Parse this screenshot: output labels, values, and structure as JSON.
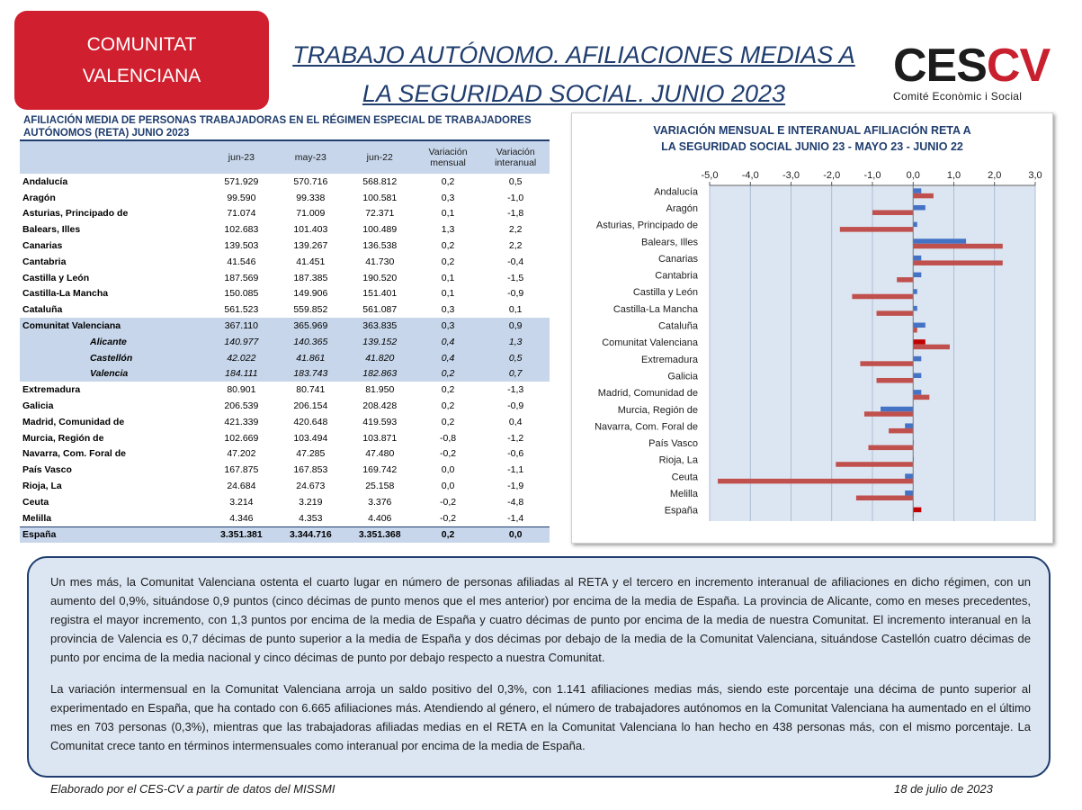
{
  "header": {
    "region_line1": "COMUNITAT",
    "region_line2": "VALENCIANA",
    "title_line1": "TRABAJO AUTÓNOMO. AFILIACIONES MEDIAS A",
    "title_line2": "LA SEGURIDAD SOCIAL. JUNIO 2023",
    "logo_main_1": "CES",
    "logo_main_2": "CV",
    "logo_sub": "Comité Econòmic i Social"
  },
  "table": {
    "title": "AFILIACIÓN MEDIA DE PERSONAS TRABAJADORAS EN EL RÉGIMEN ESPECIAL DE TRABAJADORES AUTÓNOMOS (RETA) JUNIO 2023",
    "headers": [
      "jun-23",
      "may-23",
      "jun-22",
      "Variación mensual",
      "Variación interanual"
    ],
    "rows": [
      {
        "name": "Andalucía",
        "jun23": "571.929",
        "may23": "570.716",
        "jun22": "568.812",
        "vm": "0,2",
        "vi": "0,5",
        "style": ""
      },
      {
        "name": "Aragón",
        "jun23": "99.590",
        "may23": "99.338",
        "jun22": "100.581",
        "vm": "0,3",
        "vi": "-1,0",
        "style": ""
      },
      {
        "name": "Asturias, Principado de",
        "jun23": "71.074",
        "may23": "71.009",
        "jun22": "72.371",
        "vm": "0,1",
        "vi": "-1,8",
        "style": ""
      },
      {
        "name": "Balears, Illes",
        "jun23": "102.683",
        "may23": "101.403",
        "jun22": "100.489",
        "vm": "1,3",
        "vi": "2,2",
        "style": ""
      },
      {
        "name": "Canarias",
        "jun23": "139.503",
        "may23": "139.267",
        "jun22": "136.538",
        "vm": "0,2",
        "vi": "2,2",
        "style": ""
      },
      {
        "name": "Cantabria",
        "jun23": "41.546",
        "may23": "41.451",
        "jun22": "41.730",
        "vm": "0,2",
        "vi": "-0,4",
        "style": ""
      },
      {
        "name": "Castilla y León",
        "jun23": "187.569",
        "may23": "187.385",
        "jun22": "190.520",
        "vm": "0,1",
        "vi": "-1,5",
        "style": ""
      },
      {
        "name": "Castilla-La Mancha",
        "jun23": "150.085",
        "may23": "149.906",
        "jun22": "151.401",
        "vm": "0,1",
        "vi": "-0,9",
        "style": ""
      },
      {
        "name": "Cataluña",
        "jun23": "561.523",
        "may23": "559.852",
        "jun22": "561.087",
        "vm": "0,3",
        "vi": "0,1",
        "style": ""
      },
      {
        "name": "Comunitat Valenciana",
        "jun23": "367.110",
        "may23": "365.969",
        "jun22": "363.835",
        "vm": "0,3",
        "vi": "0,9",
        "style": "hl"
      },
      {
        "name": "Alicante",
        "jun23": "140.977",
        "may23": "140.365",
        "jun22": "139.152",
        "vm": "0,4",
        "vi": "1,3",
        "style": "hl prov"
      },
      {
        "name": "Castellón",
        "jun23": "42.022",
        "may23": "41.861",
        "jun22": "41.820",
        "vm": "0,4",
        "vi": "0,5",
        "style": "hl prov"
      },
      {
        "name": "Valencia",
        "jun23": "184.111",
        "may23": "183.743",
        "jun22": "182.863",
        "vm": "0,2",
        "vi": "0,7",
        "style": "hl prov"
      },
      {
        "name": "Extremadura",
        "jun23": "80.901",
        "may23": "80.741",
        "jun22": "81.950",
        "vm": "0,2",
        "vi": "-1,3",
        "style": ""
      },
      {
        "name": "Galicia",
        "jun23": "206.539",
        "may23": "206.154",
        "jun22": "208.428",
        "vm": "0,2",
        "vi": "-0,9",
        "style": ""
      },
      {
        "name": "Madrid, Comunidad de",
        "jun23": "421.339",
        "may23": "420.648",
        "jun22": "419.593",
        "vm": "0,2",
        "vi": "0,4",
        "style": ""
      },
      {
        "name": "Murcia, Región de",
        "jun23": "102.669",
        "may23": "103.494",
        "jun22": "103.871",
        "vm": "-0,8",
        "vi": "-1,2",
        "style": ""
      },
      {
        "name": "Navarra, Com. Foral de",
        "jun23": "47.202",
        "may23": "47.285",
        "jun22": "47.480",
        "vm": "-0,2",
        "vi": "-0,6",
        "style": ""
      },
      {
        "name": "País Vasco",
        "jun23": "167.875",
        "may23": "167.853",
        "jun22": "169.742",
        "vm": "0,0",
        "vi": "-1,1",
        "style": ""
      },
      {
        "name": "Rioja, La",
        "jun23": "24.684",
        "may23": "24.673",
        "jun22": "25.158",
        "vm": "0,0",
        "vi": "-1,9",
        "style": ""
      },
      {
        "name": "Ceuta",
        "jun23": "3.214",
        "may23": "3.219",
        "jun22": "3.376",
        "vm": "-0,2",
        "vi": "-4,8",
        "style": ""
      },
      {
        "name": "Melilla",
        "jun23": "4.346",
        "may23": "4.353",
        "jun22": "4.406",
        "vm": "-0,2",
        "vi": "-1,4",
        "style": ""
      },
      {
        "name": "España",
        "jun23": "3.351.381",
        "may23": "3.344.716",
        "jun22": "3.351.368",
        "vm": "0,2",
        "vi": "0,0",
        "style": "total"
      }
    ]
  },
  "chart_data": {
    "type": "bar",
    "orientation": "horizontal",
    "title": "VARIACIÓN MENSUAL E INTERANUAL AFILIACIÓN RETA A LA SEGURIDAD SOCIAL JUNIO 23 - MAYO 23 - JUNIO 22",
    "title_line1": "VARIACIÓN MENSUAL E INTERANUAL AFILIACIÓN RETA A",
    "title_line2": "LA SEGURIDAD SOCIAL JUNIO 23 - MAYO 23 - JUNIO 22",
    "categories": [
      "Andalucía",
      "Aragón",
      "Asturias, Principado de",
      "Balears, Illes",
      "Canarias",
      "Cantabria",
      "Castilla y León",
      "Castilla-La Mancha",
      "Cataluña",
      "Comunitat Valenciana",
      "Extremadura",
      "Galicia",
      "Madrid, Comunidad de",
      "Murcia, Región de",
      "Navarra, Com. Foral de",
      "País Vasco",
      "Rioja, La",
      "Ceuta",
      "Melilla",
      "España"
    ],
    "series": [
      {
        "values": [
          0.2,
          0.3,
          0.1,
          1.3,
          0.2,
          0.2,
          0.1,
          0.1,
          0.3,
          0.3,
          0.2,
          0.2,
          0.2,
          -0.8,
          -0.2,
          0.0,
          0.0,
          -0.2,
          -0.2,
          0.2
        ]
      },
      {
        "values": [
          0.5,
          -1.0,
          -1.8,
          2.2,
          2.2,
          -0.4,
          -1.5,
          -0.9,
          0.1,
          0.9,
          -1.3,
          -0.9,
          0.4,
          -1.2,
          -0.6,
          -1.1,
          -1.9,
          -4.8,
          -1.4,
          0.0
        ]
      }
    ],
    "xlim": [
      -5.0,
      3.0
    ],
    "xticks": [
      "-5,0",
      "-4,0",
      "-3,0",
      "-2,0",
      "-1,0",
      "0,0",
      "1,0",
      "2,0",
      "3,0"
    ],
    "grid": true,
    "colors": {
      "mensual": "#4472c4",
      "interanual": "#c0504d",
      "highlight": "#c00000",
      "plot_bg": "#dce6f2"
    }
  },
  "text": {
    "p1": "Un mes más, la Comunitat Valenciana ostenta el cuarto lugar en número de personas afiliadas al RETA y el tercero en incremento interanual de afiliaciones en dicho régimen, con un aumento del 0,9%, situándose 0,9 puntos (cinco décimas de punto menos que el mes anterior) por encima de la media de España. La provincia de Alicante, como en meses precedentes, registra el mayor incremento, con 1,3 puntos por encima de la media de España y cuatro décimas de punto por encima de la media de nuestra Comunitat. El incremento interanual en la provincia de Valencia es 0,7 décimas de punto superior a la media de España y dos décimas por debajo de la media de la Comunitat Valenciana, situándose Castellón cuatro décimas de punto por encima de la media nacional y cinco décimas de punto por debajo respecto a nuestra Comunitat.",
    "p2": "La variación intermensual en la Comunitat Valenciana arroja un saldo positivo del 0,3%, con 1.141 afiliaciones medias más, siendo este porcentaje una décima de punto superior al experimentado en España, que ha contado con 6.665 afiliaciones más. Atendiendo al género, el número de trabajadores autónomos en la Comunitat Valenciana ha aumentado en el último mes en 703 personas (0,3%), mientras que las trabajadoras afiliadas medias en el RETA en la Comunitat Valenciana lo han hecho en 438 personas más, con el mismo porcentaje. La Comunitat crece tanto en términos intermensuales como interanual por encima de la media de España."
  },
  "footer": {
    "source": "Elaborado por el CES-CV a partir de datos del MISSMI",
    "date": "18 de julio de 2023"
  }
}
